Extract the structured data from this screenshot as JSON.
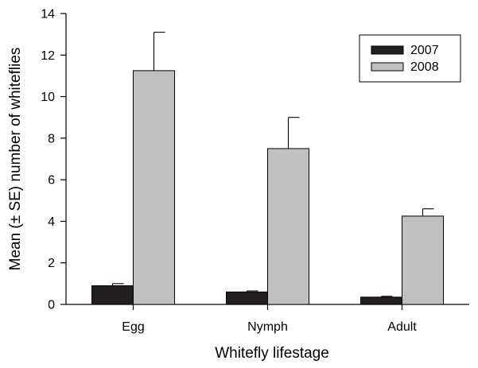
{
  "chart_data": {
    "type": "bar",
    "title": "",
    "xlabel": "Whitefly lifestage",
    "ylabel": "Mean (± SE) number of whiteflies",
    "ylim": [
      0,
      14
    ],
    "yticks": [
      0,
      2,
      4,
      6,
      8,
      10,
      12,
      14
    ],
    "categories": [
      "Egg",
      "Nymph",
      "Adult"
    ],
    "series": [
      {
        "name": "2007",
        "color": "#231f20",
        "values": [
          0.9,
          0.6,
          0.35
        ],
        "errors": [
          0.1,
          0.05,
          0.04
        ]
      },
      {
        "name": "2008",
        "color": "#c0c0c0",
        "values": [
          11.25,
          7.5,
          4.25
        ],
        "errors": [
          1.85,
          1.5,
          0.35
        ]
      }
    ],
    "legend": {
      "position": "top-right"
    },
    "grid": false
  }
}
